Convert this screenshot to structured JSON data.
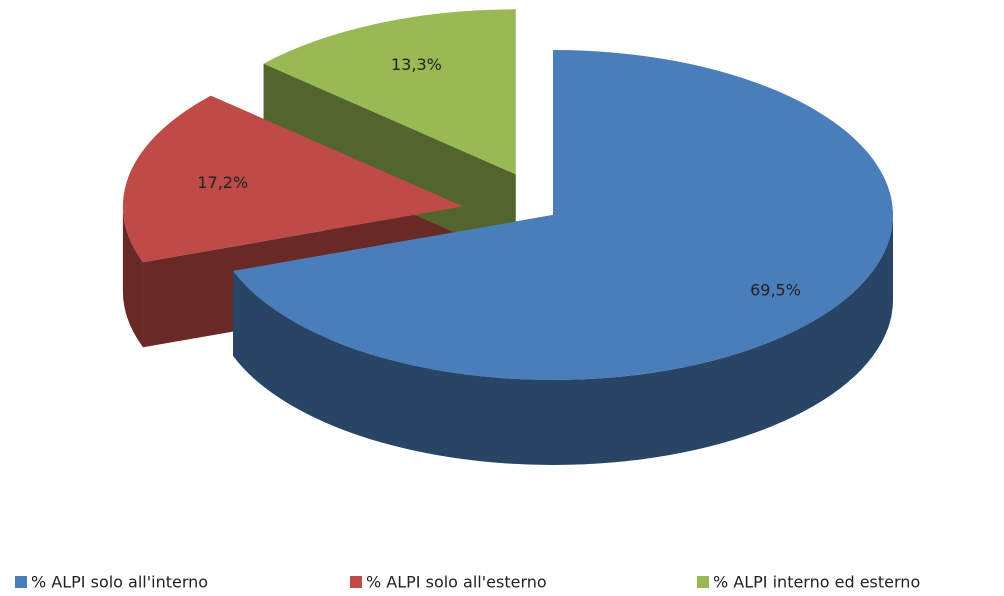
{
  "chart_data": {
    "type": "pie",
    "categories": [
      "% ALPI solo all'interno",
      "% ALPI solo all'esterno",
      "% ALPI interno ed esterno"
    ],
    "values": [
      69.5,
      17.2,
      13.3
    ],
    "value_labels": [
      "69,5%",
      "17,2%",
      "13,3%"
    ],
    "colors": [
      "#4a7ebb",
      "#be4b48",
      "#98b954"
    ],
    "legend": "bottom"
  }
}
